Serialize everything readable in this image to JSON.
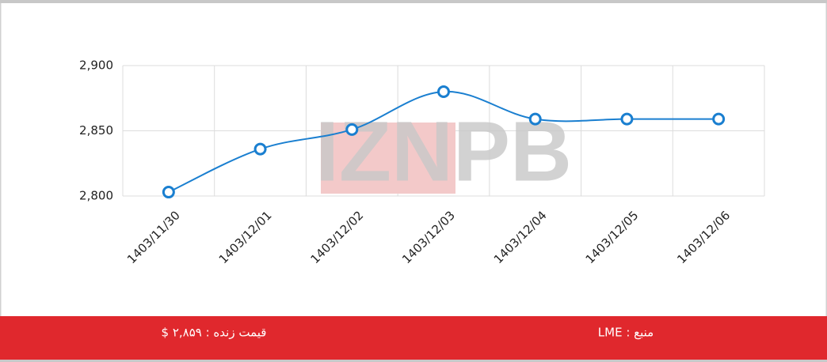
{
  "chart_data": {
    "type": "line",
    "categories": [
      "1403/11/30",
      "1403/12/01",
      "1403/12/02",
      "1403/12/03",
      "1403/12/04",
      "1403/12/05",
      "1403/12/06"
    ],
    "series": [
      {
        "color": "#1a7fd0",
        "values": [
          2803,
          2836,
          2851,
          2880,
          2859,
          2859,
          2859
        ]
      }
    ],
    "ylim": [
      2800,
      2900
    ],
    "yticks": [
      {
        "value": 2800,
        "label": "2,800"
      },
      {
        "value": 2850,
        "label": "2,850"
      },
      {
        "value": 2900,
        "label": "2,900"
      }
    ],
    "grid": true,
    "watermark": "IZNPB"
  },
  "footer": {
    "source": "منبع : LME",
    "live_price": "قیمت زنده : ۲,۸۵۹ $"
  }
}
